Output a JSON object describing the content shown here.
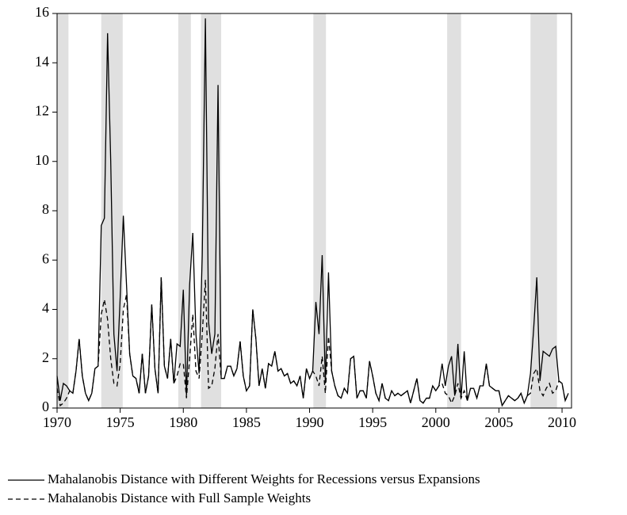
{
  "chart_data": {
    "type": "line",
    "x": [
      1970,
      1970.25,
      1970.5,
      1970.75,
      1971,
      1971.25,
      1971.5,
      1971.75,
      1972,
      1972.25,
      1972.5,
      1972.75,
      1973,
      1973.25,
      1973.5,
      1973.75,
      1974,
      1974.25,
      1974.5,
      1974.75,
      1975,
      1975.25,
      1975.5,
      1975.75,
      1976,
      1976.25,
      1976.5,
      1976.75,
      1977,
      1977.25,
      1977.5,
      1977.75,
      1978,
      1978.25,
      1978.5,
      1978.75,
      1979,
      1979.25,
      1979.5,
      1979.75,
      1980,
      1980.25,
      1980.5,
      1980.75,
      1981,
      1981.25,
      1981.5,
      1981.75,
      1982,
      1982.25,
      1982.5,
      1982.75,
      1983,
      1983.25,
      1983.5,
      1983.75,
      1984,
      1984.25,
      1984.5,
      1984.75,
      1985,
      1985.25,
      1985.5,
      1985.75,
      1986,
      1986.25,
      1986.5,
      1986.75,
      1987,
      1987.25,
      1987.5,
      1987.75,
      1988,
      1988.25,
      1988.5,
      1988.75,
      1989,
      1989.25,
      1989.5,
      1989.75,
      1990,
      1990.25,
      1990.5,
      1990.75,
      1991,
      1991.25,
      1991.5,
      1991.75,
      1992,
      1992.25,
      1992.5,
      1992.75,
      1993,
      1993.25,
      1993.5,
      1993.75,
      1994,
      1994.25,
      1994.5,
      1994.75,
      1995,
      1995.25,
      1995.5,
      1995.75,
      1996,
      1996.25,
      1996.5,
      1996.75,
      1997,
      1997.25,
      1997.5,
      1997.75,
      1998,
      1998.25,
      1998.5,
      1998.75,
      1999,
      1999.25,
      1999.5,
      1999.75,
      2000,
      2000.25,
      2000.5,
      2000.75,
      2001,
      2001.25,
      2001.5,
      2001.75,
      2002,
      2002.25,
      2002.5,
      2002.75,
      2003,
      2003.25,
      2003.5,
      2003.75,
      2004,
      2004.25,
      2004.5,
      2004.75,
      2005,
      2005.25,
      2005.5,
      2005.75,
      2006,
      2006.25,
      2006.5,
      2006.75,
      2007,
      2007.25,
      2007.5,
      2007.75,
      2008,
      2008.25,
      2008.5,
      2008.75,
      2009,
      2009.25,
      2009.5,
      2009.75,
      2010,
      2010.25,
      2010.5
    ],
    "series": [
      {
        "name": "Mahalanobis Distance with Different Weights for Recessions versus Expansions",
        "color": "#000000",
        "line_style": "solid",
        "values": [
          1.3,
          0.3,
          1.0,
          0.9,
          0.7,
          0.6,
          1.5,
          2.8,
          1.3,
          0.6,
          0.3,
          0.6,
          1.6,
          1.7,
          7.4,
          7.7,
          15.2,
          10.0,
          3.0,
          1.5,
          4.5,
          7.8,
          5.0,
          2.2,
          1.3,
          1.2,
          0.6,
          2.2,
          0.6,
          1.3,
          4.2,
          1.6,
          0.6,
          5.3,
          1.7,
          1.2,
          2.8,
          1.0,
          2.6,
          2.5,
          4.8,
          0.5,
          5.0,
          7.1,
          3.0,
          1.4,
          6.2,
          15.8,
          3.5,
          2.2,
          3.0,
          13.1,
          1.2,
          1.2,
          1.7,
          1.7,
          1.3,
          1.6,
          2.7,
          1.3,
          0.7,
          0.9,
          4.0,
          2.8,
          0.9,
          1.6,
          0.8,
          1.8,
          1.7,
          2.3,
          1.5,
          1.6,
          1.3,
          1.4,
          1.0,
          1.1,
          0.9,
          1.3,
          0.4,
          1.6,
          1.2,
          1.5,
          4.3,
          3.0,
          6.2,
          1.0,
          5.5,
          1.5,
          0.9,
          0.5,
          0.4,
          0.8,
          0.6,
          2.0,
          2.1,
          0.4,
          0.7,
          0.7,
          0.4,
          1.9,
          1.3,
          0.6,
          0.3,
          1.0,
          0.4,
          0.3,
          0.7,
          0.5,
          0.6,
          0.5,
          0.6,
          0.7,
          0.2,
          0.7,
          1.2,
          0.3,
          0.2,
          0.4,
          0.4,
          0.9,
          0.7,
          0.9,
          1.8,
          0.9,
          1.7,
          2.1,
          0.5,
          2.6,
          0.4,
          2.3,
          0.3,
          0.8,
          0.8,
          0.4,
          0.9,
          0.9,
          1.8,
          0.9,
          0.8,
          0.7,
          0.7,
          0.1,
          0.3,
          0.5,
          0.4,
          0.3,
          0.4,
          0.6,
          0.2,
          0.5,
          1.4,
          3.2,
          5.3,
          1.1,
          2.3,
          2.2,
          2.1,
          2.4,
          2.5,
          1.1,
          1.0,
          0.3,
          0.6
        ]
      },
      {
        "name": "Mahalanobis Distance with Full Sample Weights",
        "color": "#000000",
        "line_style": "dashed",
        "values": [
          0.8,
          0.1,
          0.2,
          0.4,
          0.7,
          0.6,
          1.5,
          2.8,
          1.3,
          0.6,
          0.3,
          0.6,
          1.6,
          1.7,
          3.8,
          4.4,
          3.6,
          2.0,
          1.0,
          0.9,
          1.8,
          4.0,
          4.6,
          2.2,
          1.3,
          1.2,
          0.6,
          2.2,
          0.6,
          1.3,
          4.2,
          1.6,
          0.6,
          5.3,
          1.7,
          1.2,
          2.8,
          1.0,
          1.3,
          1.8,
          1.8,
          0.4,
          2.0,
          3.8,
          1.5,
          1.2,
          3.0,
          5.2,
          0.8,
          0.9,
          1.6,
          3.0,
          1.2,
          1.2,
          1.7,
          1.7,
          1.3,
          1.6,
          2.7,
          1.3,
          0.7,
          0.9,
          4.0,
          2.8,
          0.9,
          1.6,
          0.8,
          1.8,
          1.7,
          2.3,
          1.5,
          1.6,
          1.3,
          1.4,
          1.0,
          1.1,
          0.9,
          1.3,
          0.4,
          1.6,
          1.2,
          1.5,
          1.3,
          0.9,
          2.1,
          0.6,
          2.9,
          1.5,
          0.9,
          0.5,
          0.4,
          0.8,
          0.6,
          2.0,
          2.1,
          0.4,
          0.7,
          0.7,
          0.4,
          1.9,
          1.3,
          0.6,
          0.3,
          1.0,
          0.4,
          0.3,
          0.7,
          0.5,
          0.6,
          0.5,
          0.6,
          0.7,
          0.2,
          0.7,
          1.2,
          0.3,
          0.2,
          0.4,
          0.4,
          0.9,
          0.7,
          0.9,
          1.0,
          0.6,
          0.5,
          0.2,
          0.5,
          1.0,
          0.4,
          0.7,
          0.3,
          0.8,
          0.8,
          0.4,
          0.9,
          0.9,
          1.8,
          0.9,
          0.8,
          0.7,
          0.7,
          0.1,
          0.3,
          0.5,
          0.4,
          0.3,
          0.4,
          0.6,
          0.2,
          0.5,
          0.6,
          1.4,
          1.6,
          0.7,
          0.5,
          0.8,
          1.0,
          0.6,
          0.7,
          1.1,
          1.0,
          0.3,
          0.6
        ]
      }
    ],
    "recessions": [
      [
        1970,
        1970.9
      ],
      [
        1973.5,
        1975.2
      ],
      [
        1979.6,
        1980.6
      ],
      [
        1981.4,
        1983.0
      ],
      [
        1990.3,
        1991.3
      ],
      [
        2000.9,
        2002.0
      ],
      [
        2007.5,
        2009.6
      ]
    ],
    "recession_color": "#e0e0e0",
    "xlim": [
      1970,
      2010.75
    ],
    "xticks": [
      1970,
      1975,
      1980,
      1985,
      1990,
      1995,
      2000,
      2005,
      2010
    ],
    "ylim": [
      0,
      16
    ],
    "yticks": [
      0,
      2,
      4,
      6,
      8,
      10,
      12,
      14,
      16
    ],
    "legend": "bottom-left"
  }
}
